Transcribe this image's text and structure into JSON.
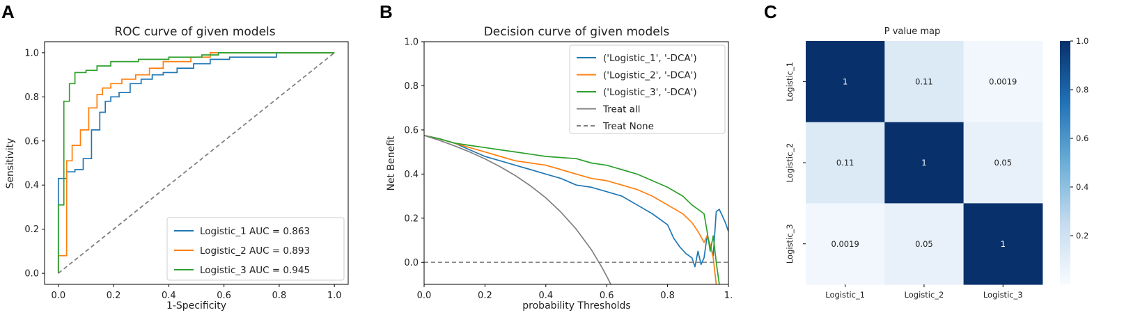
{
  "chart_data": [
    {
      "panel": "A",
      "type": "line",
      "title": "ROC curve of given models",
      "xlabel": "1-Specificity",
      "ylabel": "Sensitivity",
      "xlim": [
        -0.05,
        1.05
      ],
      "ylim": [
        -0.05,
        1.05
      ],
      "xticks": [
        "0.0",
        "0.2",
        "0.4",
        "0.6",
        "0.8",
        "1.0"
      ],
      "yticks": [
        "0.0",
        "0.2",
        "0.4",
        "0.6",
        "0.8",
        "1.0"
      ],
      "legend_position": "bottom-right",
      "series": [
        {
          "name": "Logistic_1 AUC = 0.863",
          "color": "#1f77b4",
          "x": [
            0,
            0,
            0.03,
            0.03,
            0.06,
            0.06,
            0.09,
            0.09,
            0.12,
            0.12,
            0.15,
            0.15,
            0.17,
            0.17,
            0.19,
            0.19,
            0.22,
            0.22,
            0.26,
            0.26,
            0.3,
            0.3,
            0.34,
            0.34,
            0.38,
            0.38,
            0.43,
            0.43,
            0.49,
            0.49,
            0.55,
            0.55,
            0.62,
            0.62,
            0.79,
            0.79,
            0.85,
            1.0
          ],
          "y": [
            0,
            0.43,
            0.43,
            0.46,
            0.46,
            0.47,
            0.47,
            0.52,
            0.52,
            0.65,
            0.65,
            0.73,
            0.73,
            0.78,
            0.78,
            0.8,
            0.8,
            0.82,
            0.82,
            0.86,
            0.86,
            0.88,
            0.88,
            0.9,
            0.9,
            0.91,
            0.91,
            0.93,
            0.93,
            0.95,
            0.95,
            0.97,
            0.97,
            0.98,
            0.98,
            1.0,
            1.0,
            1.0
          ]
        },
        {
          "name": "Logistic_2 AUC = 0.893",
          "color": "#ff7f0e",
          "x": [
            0,
            0,
            0.03,
            0.03,
            0.05,
            0.05,
            0.08,
            0.08,
            0.11,
            0.11,
            0.14,
            0.14,
            0.16,
            0.16,
            0.19,
            0.19,
            0.23,
            0.23,
            0.28,
            0.28,
            0.33,
            0.33,
            0.38,
            0.38,
            0.48,
            0.48,
            0.55,
            0.55,
            1.0
          ],
          "y": [
            0,
            0.08,
            0.08,
            0.51,
            0.51,
            0.58,
            0.58,
            0.65,
            0.65,
            0.75,
            0.75,
            0.81,
            0.81,
            0.84,
            0.84,
            0.86,
            0.86,
            0.88,
            0.88,
            0.9,
            0.9,
            0.93,
            0.93,
            0.96,
            0.96,
            0.98,
            0.98,
            1.0,
            1.0
          ]
        },
        {
          "name": "Logistic_3 AUC = 0.945",
          "color": "#2ca02c",
          "x": [
            0,
            0,
            0.02,
            0.02,
            0.04,
            0.04,
            0.06,
            0.06,
            0.1,
            0.1,
            0.14,
            0.14,
            0.19,
            0.19,
            0.29,
            0.29,
            0.4,
            0.4,
            0.52,
            0.52,
            0.58,
            0.58,
            1.0
          ],
          "y": [
            0,
            0.31,
            0.31,
            0.78,
            0.78,
            0.86,
            0.86,
            0.91,
            0.91,
            0.92,
            0.92,
            0.94,
            0.94,
            0.96,
            0.96,
            0.97,
            0.97,
            0.98,
            0.98,
            0.99,
            0.99,
            1.0,
            1.0
          ]
        },
        {
          "name": "",
          "color": "#808080",
          "dashed": true,
          "x": [
            0,
            1
          ],
          "y": [
            0,
            1
          ]
        }
      ]
    },
    {
      "panel": "B",
      "type": "line",
      "title": "Decision curve of given models",
      "xlabel": "probability Thresholds",
      "ylabel": "Net Benefit",
      "xlim": [
        0,
        1.0
      ],
      "ylim": [
        -0.1,
        1.0
      ],
      "xticks": [
        "0.0",
        "0.2",
        "0.4",
        "0.6",
        "0.8",
        "1."
      ],
      "yticks": [
        "0.0",
        "0.2",
        "0.4",
        "0.6",
        "0.8",
        "1.0"
      ],
      "legend_position": "top-right",
      "series": [
        {
          "name": "('Logistic_1', '-DCA')",
          "color": "#1f77b4",
          "x": [
            0,
            0.05,
            0.1,
            0.15,
            0.2,
            0.25,
            0.3,
            0.35,
            0.4,
            0.45,
            0.5,
            0.55,
            0.6,
            0.65,
            0.7,
            0.75,
            0.8,
            0.82,
            0.84,
            0.86,
            0.88,
            0.89,
            0.9,
            0.91,
            0.92,
            0.93,
            0.94,
            0.95,
            0.96,
            0.97,
            0.98,
            0.99,
            1.0
          ],
          "y": [
            0.575,
            0.56,
            0.54,
            0.51,
            0.48,
            0.46,
            0.44,
            0.42,
            0.4,
            0.38,
            0.35,
            0.34,
            0.32,
            0.3,
            0.26,
            0.22,
            0.17,
            0.11,
            0.07,
            0.04,
            0.02,
            -0.02,
            0.05,
            -0.01,
            0.02,
            0.12,
            0.08,
            0.03,
            0.23,
            0.24,
            0.21,
            0.18,
            0.14
          ]
        },
        {
          "name": "('Logistic_2', '-DCA')",
          "color": "#ff7f0e",
          "x": [
            0,
            0.05,
            0.1,
            0.15,
            0.2,
            0.25,
            0.3,
            0.35,
            0.4,
            0.45,
            0.5,
            0.55,
            0.6,
            0.65,
            0.7,
            0.75,
            0.8,
            0.85,
            0.88,
            0.9,
            0.92,
            0.93,
            0.94,
            0.95,
            0.96
          ],
          "y": [
            0.575,
            0.56,
            0.54,
            0.52,
            0.5,
            0.48,
            0.46,
            0.45,
            0.44,
            0.42,
            0.4,
            0.38,
            0.37,
            0.35,
            0.33,
            0.3,
            0.26,
            0.22,
            0.18,
            0.14,
            0.09,
            0.12,
            0.08,
            0.02,
            -0.1
          ]
        },
        {
          "name": "('Logistic_3', '-DCA')",
          "color": "#2ca02c",
          "x": [
            0,
            0.05,
            0.1,
            0.15,
            0.2,
            0.25,
            0.3,
            0.35,
            0.4,
            0.45,
            0.5,
            0.55,
            0.6,
            0.65,
            0.7,
            0.75,
            0.8,
            0.85,
            0.88,
            0.9,
            0.92,
            0.93,
            0.94,
            0.95,
            0.96,
            0.97
          ],
          "y": [
            0.575,
            0.56,
            0.54,
            0.53,
            0.52,
            0.51,
            0.5,
            0.49,
            0.48,
            0.475,
            0.47,
            0.45,
            0.44,
            0.42,
            0.4,
            0.37,
            0.34,
            0.3,
            0.26,
            0.24,
            0.22,
            0.14,
            0.05,
            0.12,
            0.0,
            -0.1
          ]
        },
        {
          "name": "Treat all",
          "color": "#808080",
          "x": [
            0,
            0.05,
            0.1,
            0.15,
            0.2,
            0.25,
            0.3,
            0.35,
            0.4,
            0.45,
            0.5,
            0.55,
            0.58,
            0.6,
            0.62
          ],
          "y": [
            0.575,
            0.553,
            0.528,
            0.5,
            0.469,
            0.433,
            0.393,
            0.346,
            0.292,
            0.227,
            0.15,
            0.056,
            -0.013,
            -0.063,
            -0.118
          ]
        },
        {
          "name": "Treat None",
          "color": "#808080",
          "dashed": true,
          "x": [
            0,
            1
          ],
          "y": [
            0,
            0
          ]
        }
      ]
    },
    {
      "panel": "C",
      "type": "heatmap",
      "title": "P value map",
      "labels": [
        "Logistic_1",
        "Logistic_2",
        "Logistic_3"
      ],
      "matrix": [
        [
          "1",
          "0.11",
          "0.0019"
        ],
        [
          "0.11",
          "1",
          "0.05"
        ],
        [
          "0.0019",
          "0.05",
          "1"
        ]
      ],
      "values": [
        [
          1,
          0.11,
          0.0019
        ],
        [
          0.11,
          1,
          0.05
        ],
        [
          0.0019,
          0.05,
          1
        ]
      ],
      "colorbar_range": [
        0,
        1
      ],
      "colorbar_ticks": [
        "0.2",
        "0.4",
        "0.6",
        "0.8",
        "1.0"
      ],
      "colormap": "Blues"
    }
  ],
  "panel_labels": [
    "A",
    "B",
    "C"
  ]
}
